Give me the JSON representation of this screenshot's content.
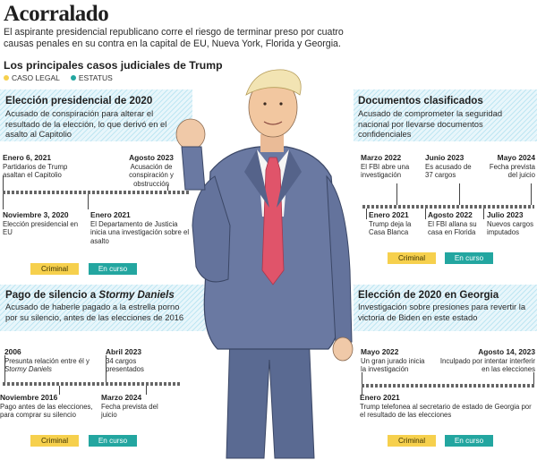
{
  "header": {
    "title": "Acorralado",
    "intro": "El aspirante presidencial republicano corre el riesgo de terminar preso por cuatro causas penales en su contra en la capital de EU, Nueva York, Florida y Georgia.",
    "section_heading": "Los principales casos judiciales de Trump"
  },
  "legend": {
    "items": [
      {
        "label": "CASO LEGAL",
        "color": "#f6d04d"
      },
      {
        "label": "ESTATUS",
        "color": "#23a6a0"
      }
    ]
  },
  "cases": {
    "election_2020": {
      "title": "Elección presidencial de 2020",
      "description": "Acusado de conspiración para alterar el resultado de la elección, lo que derivó en el asalto al Capitolio",
      "events": [
        {
          "date": "Enero 6, 2021",
          "text": "Partidarios de Trump asaltan el Capitolio"
        },
        {
          "date": "Agosto 2023",
          "text": "Acusación de conspiración y obstrucción"
        },
        {
          "date": "Noviembre 3, 2020",
          "text": "Elección presidencial en EU"
        },
        {
          "date": "Enero 2021",
          "text": "El Departamento de Justicia inicia una investigación sobre el asalto"
        }
      ],
      "case_type": "Criminal",
      "status": "En curso"
    },
    "documents": {
      "title": "Documentos clasificados",
      "description": "Acusado de comprometer la seguridad nacional por llevarse documentos confidenciales",
      "events": [
        {
          "date": "Marzo 2022",
          "text": "El FBI abre una investigación"
        },
        {
          "date": "Junio 2023",
          "text": "Es acusado de 37 cargos"
        },
        {
          "date": "Mayo 2024",
          "text": "Fecha prevista del juicio"
        },
        {
          "date": "Enero 2021",
          "text": "Trump deja la Casa Blanca"
        },
        {
          "date": "Agosto 2022",
          "text": "El FBI allana su casa en Florida"
        },
        {
          "date": "Julio 2023",
          "text": "Nuevos cargos imputados"
        }
      ],
      "case_type": "Criminal",
      "status": "En curso"
    },
    "stormy": {
      "title_prefix": "Pago de silencio a ",
      "title_name": "Stormy Daniels",
      "description": "Acusado de haberle pagado a la estrella porno por su silencio, antes de las elecciones de 2016",
      "events": [
        {
          "date": "2006",
          "text_prefix": "Presunta relación entre él y ",
          "text_name": "Stormy Daniels"
        },
        {
          "date": "Abril 2023",
          "text": "34 cargos presentados"
        },
        {
          "date": "Noviembre 2016",
          "text": "Pago antes de las elecciones, para comprar su silencio"
        },
        {
          "date": "Marzo 2024",
          "text": "Fecha prevista del juicio"
        }
      ],
      "case_type": "Criminal",
      "status": "En curso"
    },
    "georgia": {
      "title": "Elección de 2020 en Georgia",
      "description": "Investigación sobre presiones para revertir la victoria de Biden en este estado",
      "events": [
        {
          "date": "Mayo 2022",
          "text": "Un gran jurado inicia la investigación"
        },
        {
          "date": "Agosto 14, 2023",
          "text": "Inculpado por intentar interferir en las elecciones"
        },
        {
          "date": "Enero 2021",
          "text": "Trump telefonea al secretario de estado de Georgia por el resultado de las elecciones"
        }
      ],
      "case_type": "Criminal",
      "status": "En curso"
    }
  },
  "colors": {
    "legal": "#f6d04d",
    "status": "#23a6a0",
    "hatch": "#bfe6f2",
    "suit": "#5f6f96",
    "tie": "#e0546a"
  }
}
